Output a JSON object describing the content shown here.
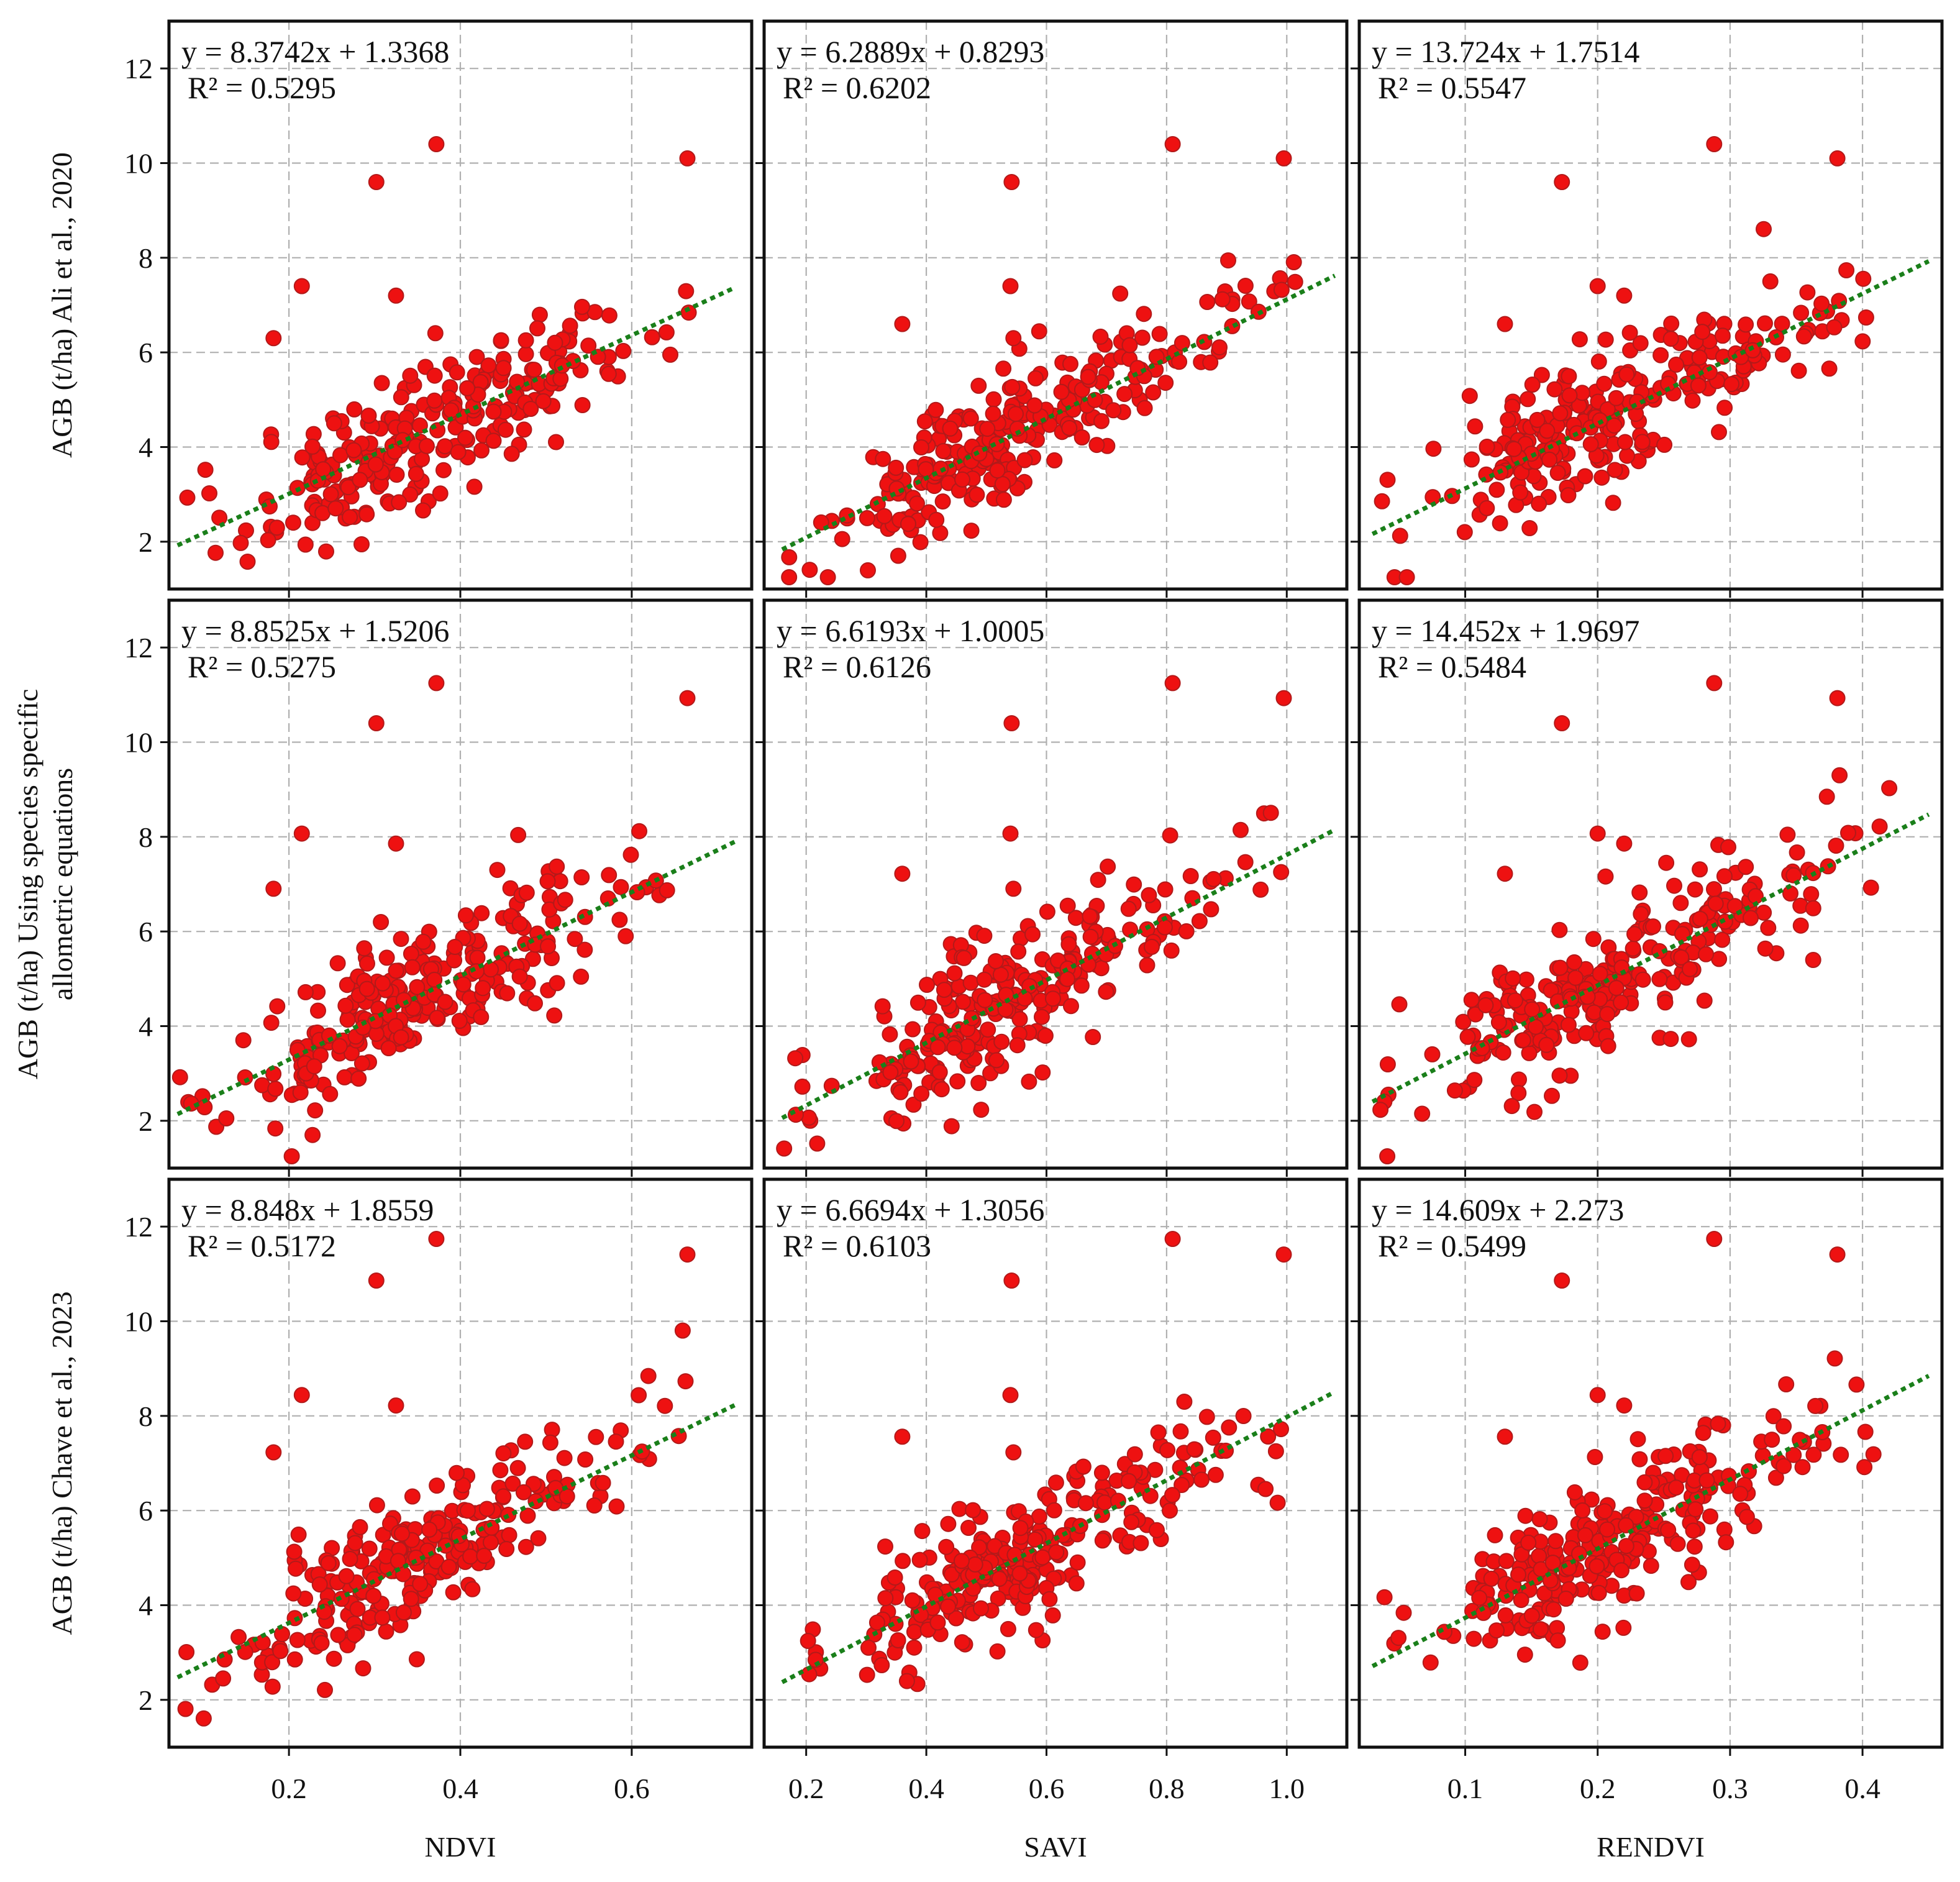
{
  "figure": {
    "xlabels": [
      "NDVI",
      "SAVI",
      "RENDVI"
    ],
    "ylabels": [
      [
        "AGB (t/ha) Ali et al., 2020"
      ],
      [
        "AGB (t/ha) Using species specific",
        "allometric equations"
      ],
      [
        "AGB (t/ha) Chave et al., 2023"
      ]
    ],
    "yticks": [
      "2",
      "4",
      "6",
      "8",
      "10",
      "12"
    ],
    "xticks": {
      "NDVI": [
        "0.2",
        "0.4",
        "0.6"
      ],
      "SAVI": [
        "0.2",
        "0.4",
        "0.6",
        "0.8",
        "1.0"
      ],
      "RENDVI": [
        "0.1",
        "0.2",
        "0.3",
        "0.4"
      ]
    }
  },
  "colors": {
    "point": "#ee1111",
    "point_edge": "#b21a1a",
    "trend": "#1a7f1a",
    "grid": "#b0b0b0",
    "frame": "#111111"
  },
  "chart_data": [
    {
      "type": "scatter",
      "row": 0,
      "col": 0,
      "xlabel": "NDVI",
      "ylabel": "AGB (t/ha) Ali et al., 2020",
      "xlim": [
        0.06,
        0.74
      ],
      "ylim": [
        1.0,
        13.0
      ],
      "equation": "y = 8.3742x + 1.3368",
      "r2": "R² = 0.5295",
      "slope": 8.3742,
      "intercept": 1.3368,
      "fit_x": [
        0.07,
        0.72
      ],
      "seed": 11,
      "n": 250,
      "grid": true
    },
    {
      "type": "scatter",
      "row": 0,
      "col": 1,
      "xlabel": "SAVI",
      "ylabel": "AGB (t/ha) Ali et al., 2020",
      "xlim": [
        0.13,
        1.1
      ],
      "ylim": [
        1.0,
        13.0
      ],
      "equation": "y = 6.2889x + 0.8293",
      "r2": "R² = 0.6202",
      "slope": 6.2889,
      "intercept": 0.8293,
      "fit_x": [
        0.16,
        1.08
      ],
      "seed": 12,
      "n": 250,
      "grid": true
    },
    {
      "type": "scatter",
      "row": 0,
      "col": 2,
      "xlabel": "RENDVI",
      "ylabel": "AGB (t/ha) Ali et al., 2020",
      "xlim": [
        0.02,
        0.46
      ],
      "ylim": [
        1.0,
        13.0
      ],
      "equation": "y = 13.724x + 1.7514",
      "r2": "R² = 0.5547",
      "slope": 13.724,
      "intercept": 1.7514,
      "fit_x": [
        0.03,
        0.45
      ],
      "seed": 13,
      "n": 250,
      "grid": true
    },
    {
      "type": "scatter",
      "row": 1,
      "col": 0,
      "xlabel": "NDVI",
      "ylabel": "AGB (t/ha) Using species specific allometric equations",
      "xlim": [
        0.06,
        0.74
      ],
      "ylim": [
        1.0,
        13.0
      ],
      "equation": "y = 8.8525x + 1.5206",
      "r2": "R² = 0.5275",
      "slope": 8.8525,
      "intercept": 1.5206,
      "fit_x": [
        0.07,
        0.72
      ],
      "seed": 21,
      "n": 250,
      "grid": true
    },
    {
      "type": "scatter",
      "row": 1,
      "col": 1,
      "xlabel": "SAVI",
      "ylabel": "AGB (t/ha) Using species specific allometric equations",
      "xlim": [
        0.13,
        1.1
      ],
      "ylim": [
        1.0,
        13.0
      ],
      "equation": "y = 6.6193x + 1.0005",
      "r2": "R² = 0.6126",
      "slope": 6.6193,
      "intercept": 1.0005,
      "fit_x": [
        0.16,
        1.08
      ],
      "seed": 22,
      "n": 250,
      "grid": true
    },
    {
      "type": "scatter",
      "row": 1,
      "col": 2,
      "xlabel": "RENDVI",
      "ylabel": "AGB (t/ha) Using species specific allometric equations",
      "xlim": [
        0.02,
        0.46
      ],
      "ylim": [
        1.0,
        13.0
      ],
      "equation": "y = 14.452x + 1.9697",
      "r2": "R² = 0.5484",
      "slope": 14.452,
      "intercept": 1.9697,
      "fit_x": [
        0.03,
        0.45
      ],
      "seed": 23,
      "n": 250,
      "grid": true
    },
    {
      "type": "scatter",
      "row": 2,
      "col": 0,
      "xlabel": "NDVI",
      "ylabel": "AGB (t/ha) Chave et al., 2023",
      "xlim": [
        0.06,
        0.74
      ],
      "ylim": [
        1.0,
        13.0
      ],
      "equation": "y = 8.848x + 1.8559",
      "r2": "R² = 0.5172",
      "slope": 8.848,
      "intercept": 1.8559,
      "fit_x": [
        0.07,
        0.72
      ],
      "seed": 31,
      "n": 250,
      "grid": true
    },
    {
      "type": "scatter",
      "row": 2,
      "col": 1,
      "xlabel": "SAVI",
      "ylabel": "AGB (t/ha) Chave et al., 2023",
      "xlim": [
        0.13,
        1.1
      ],
      "ylim": [
        1.0,
        13.0
      ],
      "equation": "y = 6.6694x + 1.3056",
      "r2": "R² = 0.6103",
      "slope": 6.6694,
      "intercept": 1.3056,
      "fit_x": [
        0.16,
        1.08
      ],
      "seed": 32,
      "n": 250,
      "grid": true
    },
    {
      "type": "scatter",
      "row": 2,
      "col": 2,
      "xlabel": "RENDVI",
      "ylabel": "AGB (t/ha) Chave et al., 2023",
      "xlim": [
        0.02,
        0.46
      ],
      "ylim": [
        1.0,
        13.0
      ],
      "equation": "y = 14.609x + 2.273",
      "r2": "R² = 0.5499",
      "slope": 14.609,
      "intercept": 2.273,
      "fit_x": [
        0.03,
        0.45
      ],
      "seed": 33,
      "n": 250,
      "grid": true
    }
  ]
}
